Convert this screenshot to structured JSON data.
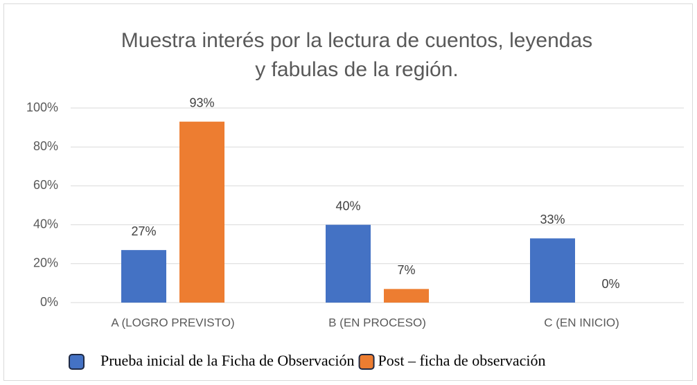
{
  "chart_data": {
    "type": "bar",
    "title": [
      "Muestra interés por la lectura de cuentos, leyendas",
      "y fabulas de la región."
    ],
    "categories": [
      "A (LOGRO PREVISTO)",
      "B (EN PROCESO)",
      "C (EN INICIO)"
    ],
    "series": [
      {
        "name": "Prueba inicial de la Ficha de Observación",
        "color": "#4472c4",
        "values": [
          27,
          40,
          33
        ],
        "value_labels": [
          "27%",
          "40%",
          "33%"
        ]
      },
      {
        "name": "Post – ficha de observación",
        "color": "#ed7d31",
        "values": [
          93,
          7,
          0
        ],
        "value_labels": [
          "93%",
          "7%",
          "0%"
        ]
      }
    ],
    "ylim": [
      0,
      100
    ],
    "yticks": [
      {
        "value": 0,
        "label": "0%"
      },
      {
        "value": 20,
        "label": "20%"
      },
      {
        "value": 40,
        "label": "40%"
      },
      {
        "value": 60,
        "label": "60%"
      },
      {
        "value": 80,
        "label": "80%"
      },
      {
        "value": 100,
        "label": "100%"
      }
    ],
    "grid": true,
    "legend": "bottom"
  }
}
